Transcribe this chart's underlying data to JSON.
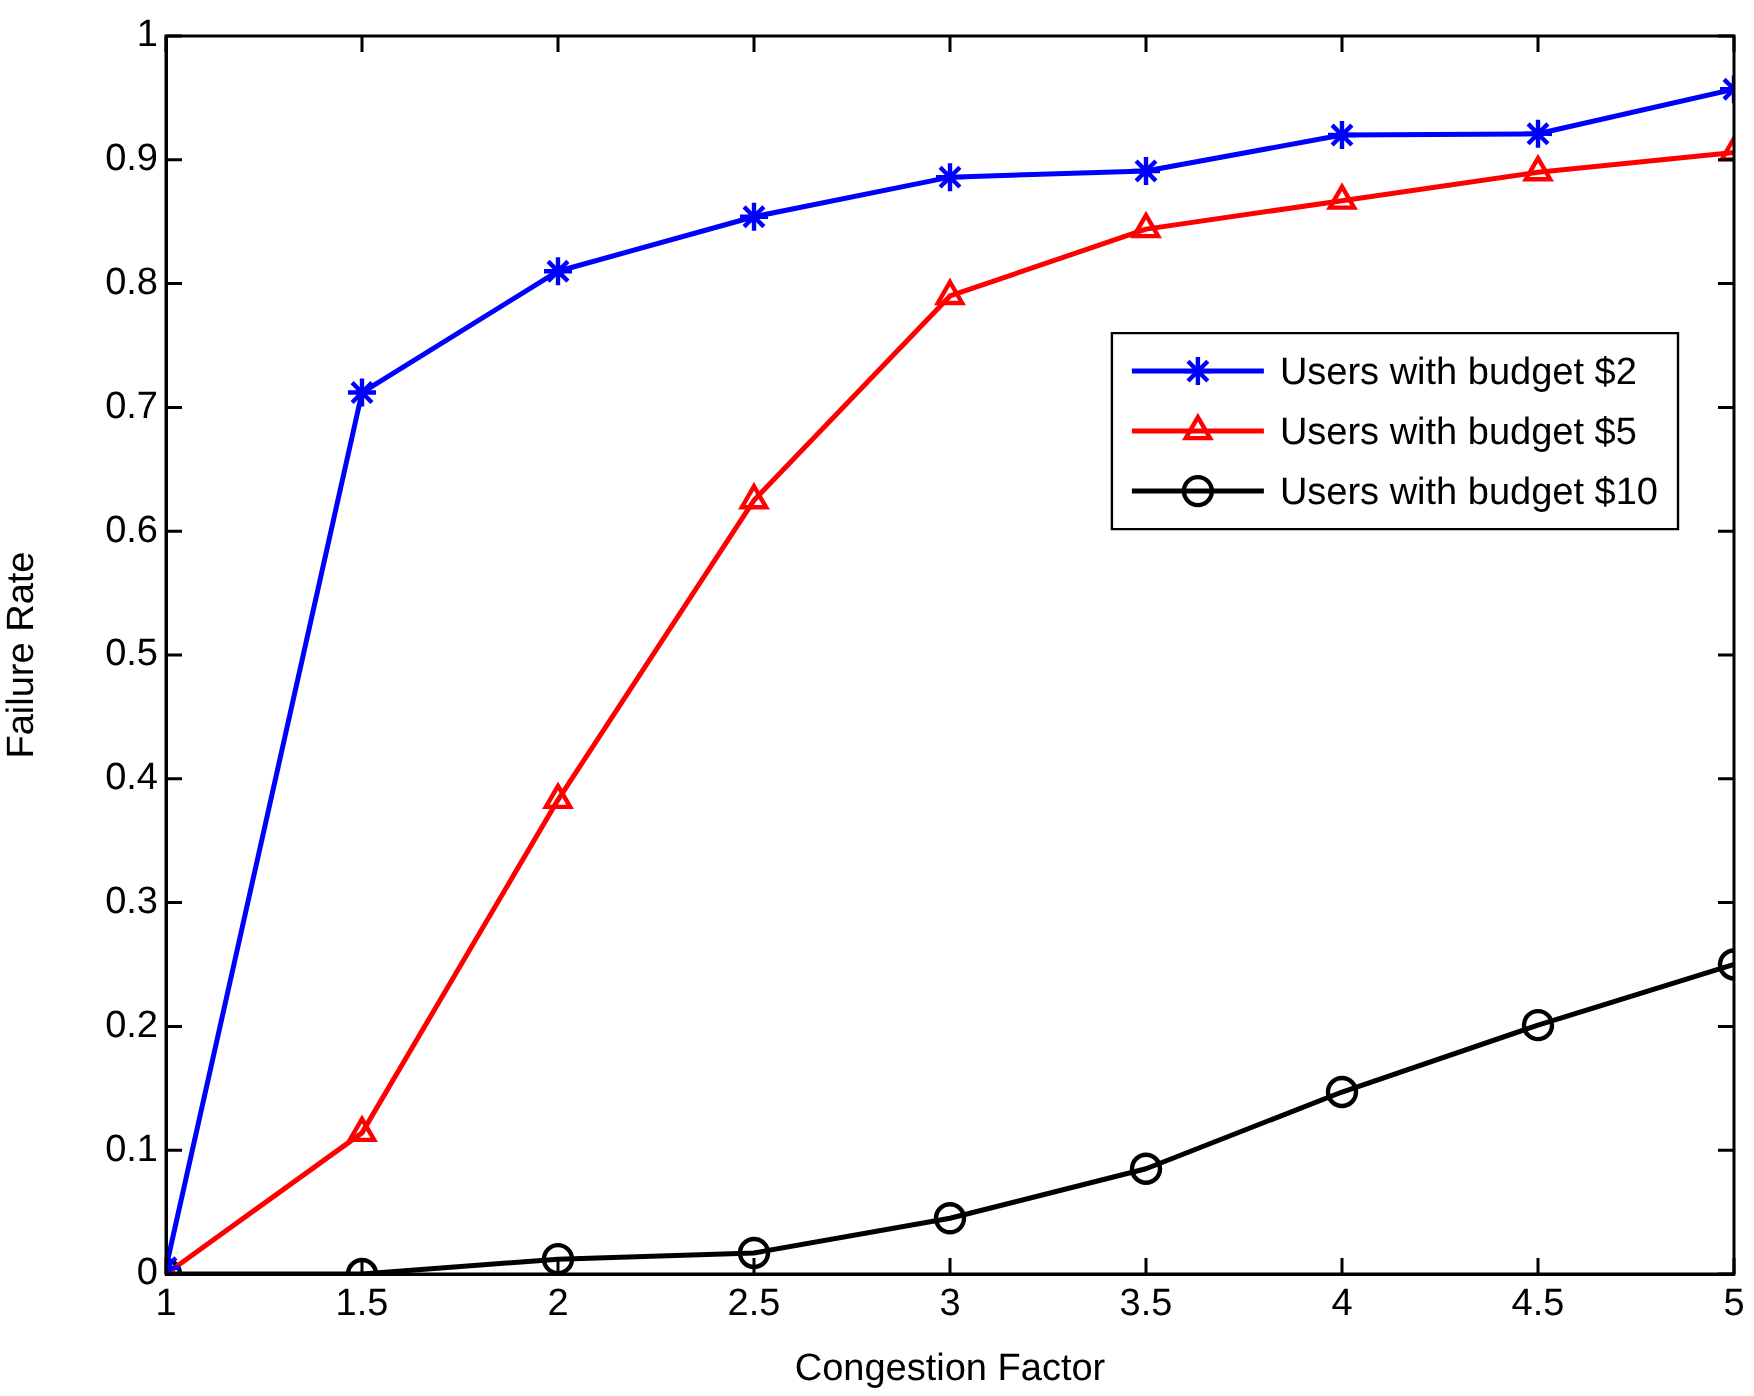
{
  "chart_data": {
    "type": "line",
    "xlabel": "Congestion Factor",
    "ylabel": "Failure Rate",
    "x": [
      1,
      1.5,
      2,
      2.5,
      3,
      3.5,
      4,
      4.5,
      5
    ],
    "series": [
      {
        "name": "Users with budget $2",
        "color": "#0000ff",
        "marker": "cross",
        "values": [
          0.005,
          0.712,
          0.81,
          0.854,
          0.886,
          0.891,
          0.92,
          0.921,
          0.957
        ]
      },
      {
        "name": "Users with budget $5",
        "color": "#ff0000",
        "marker": "triangle",
        "values": [
          0,
          0.114,
          0.383,
          0.625,
          0.79,
          0.844,
          0.867,
          0.89,
          0.906
        ]
      },
      {
        "name": "Users with budget $10",
        "color": "#000000",
        "marker": "circle",
        "values": [
          0,
          0,
          0.012,
          0.017,
          0.045,
          0.085,
          0.147,
          0.201,
          0.25
        ]
      }
    ],
    "xlim": [
      1,
      5
    ],
    "xticks": [
      1,
      1.5,
      2,
      2.5,
      3,
      3.5,
      4,
      4.5,
      5
    ],
    "ylim": [
      0,
      1
    ],
    "yticks": [
      0,
      0.1,
      0.2,
      0.3,
      0.4,
      0.5,
      0.6,
      0.7,
      0.8,
      0.9,
      1
    ],
    "grid": false,
    "legend": "right",
    "line_style": "solid"
  }
}
